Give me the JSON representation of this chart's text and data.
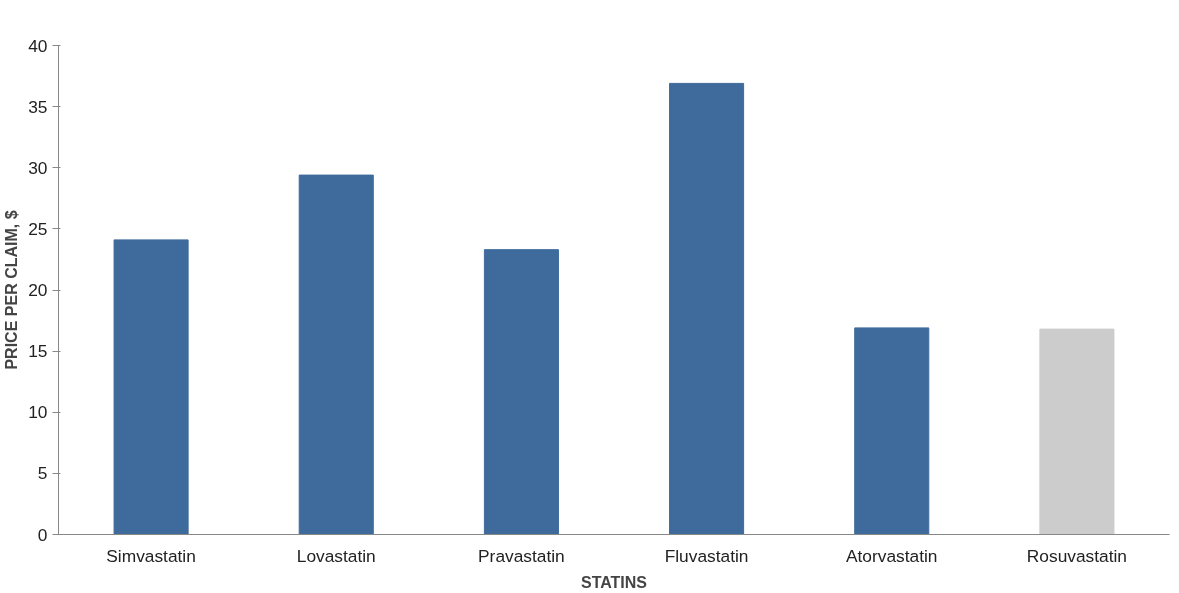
{
  "chart_data": {
    "type": "bar",
    "xlabel": "STATINS",
    "ylabel": "PRICE PER CLAIM, $",
    "categories": [
      "Simvastatin",
      "Lovastatin",
      "Pravastatin",
      "Fluvastatin",
      "Atorvastatin",
      "Rosuvastatin"
    ],
    "values": [
      24.1,
      29.4,
      23.3,
      36.9,
      16.9,
      16.8
    ],
    "colors": [
      "#3e6b9c",
      "#3e6b9c",
      "#3e6b9c",
      "#3e6b9c",
      "#3e6b9c",
      "#cccccc"
    ],
    "ylim": [
      0,
      40
    ],
    "yticks": [
      0,
      5,
      10,
      15,
      20,
      25,
      30,
      35,
      40
    ],
    "grid": false
  }
}
